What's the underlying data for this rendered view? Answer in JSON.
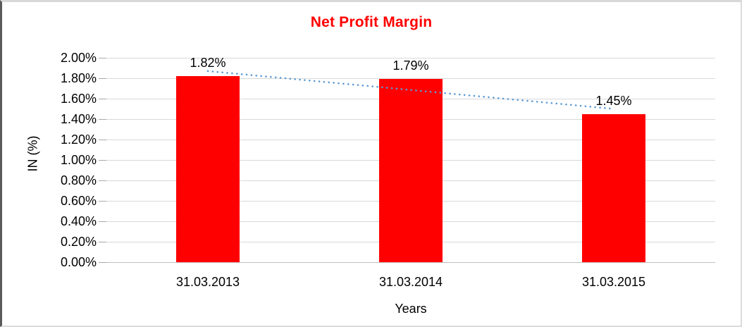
{
  "chart_data": {
    "type": "bar",
    "title": "Net Profit Margin",
    "categories": [
      "31.03.2013",
      "31.03.2014",
      "31.03.2015"
    ],
    "values": [
      1.82,
      1.79,
      1.45
    ],
    "data_labels": [
      "1.82%",
      "1.79%",
      "1.45%"
    ],
    "xlabel": "Years",
    "ylabel": "IN (%)",
    "ylim": [
      0,
      2.0
    ],
    "ytick_step": 0.2,
    "ytick_labels": [
      "2.00%",
      "1.80%",
      "1.60%",
      "1.40%",
      "1.20%",
      "1.00%",
      "0.80%",
      "0.60%",
      "0.40%",
      "0.20%",
      "0.00%"
    ],
    "grid": true,
    "legend": "none",
    "colors": {
      "bar": "#FF0000",
      "title": "#FF0000",
      "gridline": "#D9D9D9",
      "axis_text": "#000000"
    },
    "trendline": {
      "type": "linear",
      "style": "dotted",
      "color": "#5B9BD5",
      "fit_values": [
        1.87,
        1.5
      ]
    }
  }
}
